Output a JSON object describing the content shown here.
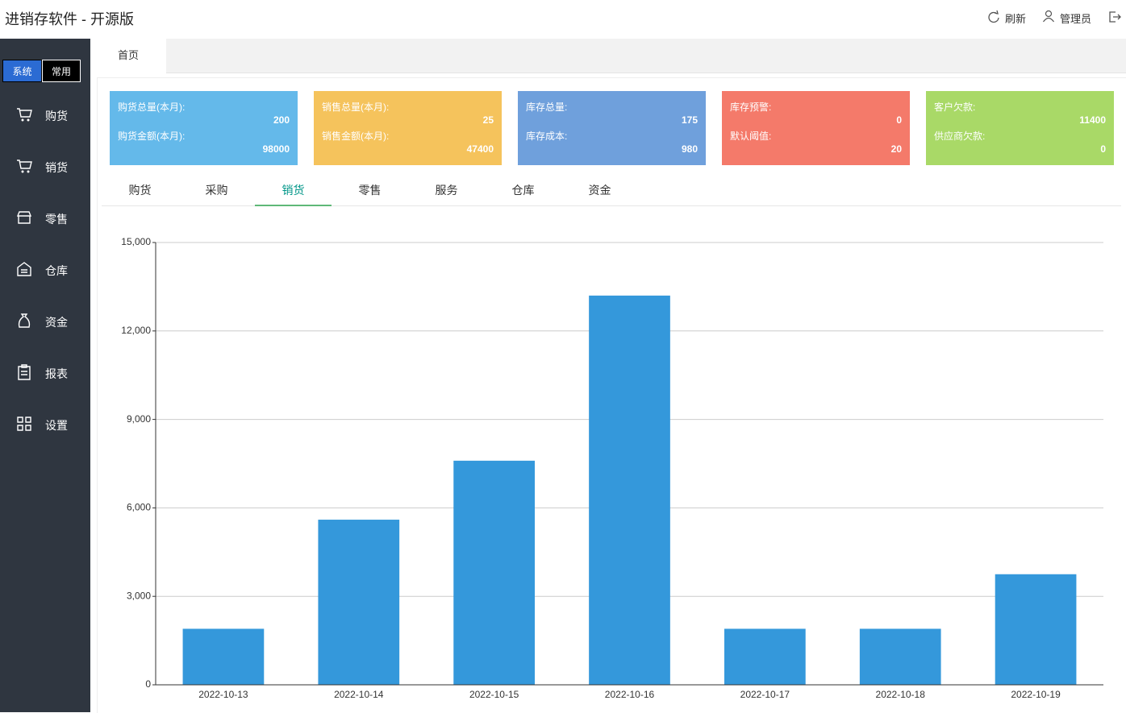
{
  "header": {
    "title": "进销存软件 - 开源版",
    "actions": [
      "刷新",
      "管理员"
    ]
  },
  "sidebar": {
    "switch": [
      "系统",
      "常用"
    ],
    "menu": [
      "购货",
      "销货",
      "零售",
      "仓库",
      "资金",
      "报表",
      "设置"
    ]
  },
  "tabs": [
    "首页"
  ],
  "cards": [
    {
      "color": "#64b9ea",
      "rows": [
        {
          "label": "购货总量(本月):",
          "value": 200
        },
        {
          "label": "购货金额(本月):",
          "value": 98000
        }
      ]
    },
    {
      "color": "#f5c35c",
      "rows": [
        {
          "label": "销售总量(本月):",
          "value": 25
        },
        {
          "label": "销售金额(本月):",
          "value": 47400
        }
      ]
    },
    {
      "color": "#6fa0dc",
      "rows": [
        {
          "label": "库存总量:",
          "value": 175
        },
        {
          "label": "库存成本:",
          "value": 980
        }
      ]
    },
    {
      "color": "#f47a6a",
      "rows": [
        {
          "label": "库存预警:",
          "value": 0
        },
        {
          "label": "默认阈值:",
          "value": 20
        }
      ]
    },
    {
      "color": "#a9d967",
      "rows": [
        {
          "label": "客户欠款:",
          "value": 11400
        },
        {
          "label": "供应商欠款:",
          "value": 0
        }
      ]
    }
  ],
  "subtabs": {
    "items": [
      "购货",
      "采购",
      "销货",
      "零售",
      "服务",
      "仓库",
      "资金"
    ],
    "active": 2
  },
  "chart_data": {
    "type": "bar",
    "categories": [
      "2022-10-13",
      "2022-10-14",
      "2022-10-15",
      "2022-10-16",
      "2022-10-17",
      "2022-10-18",
      "2022-10-19"
    ],
    "values": [
      1900,
      5600,
      7600,
      13200,
      1900,
      1900,
      3750
    ],
    "color": "#3498db",
    "ylim": [
      0,
      15000
    ],
    "yticks": [
      0,
      {
        "value": 3000,
        "label": "3,000"
      },
      {
        "value": 6000,
        "label": "6,000"
      },
      {
        "value": 9000,
        "label": "9,000"
      },
      {
        "value": 12000,
        "label": "12,000"
      },
      {
        "value": 15000,
        "label": "15,000"
      }
    ],
    "grid": true
  }
}
